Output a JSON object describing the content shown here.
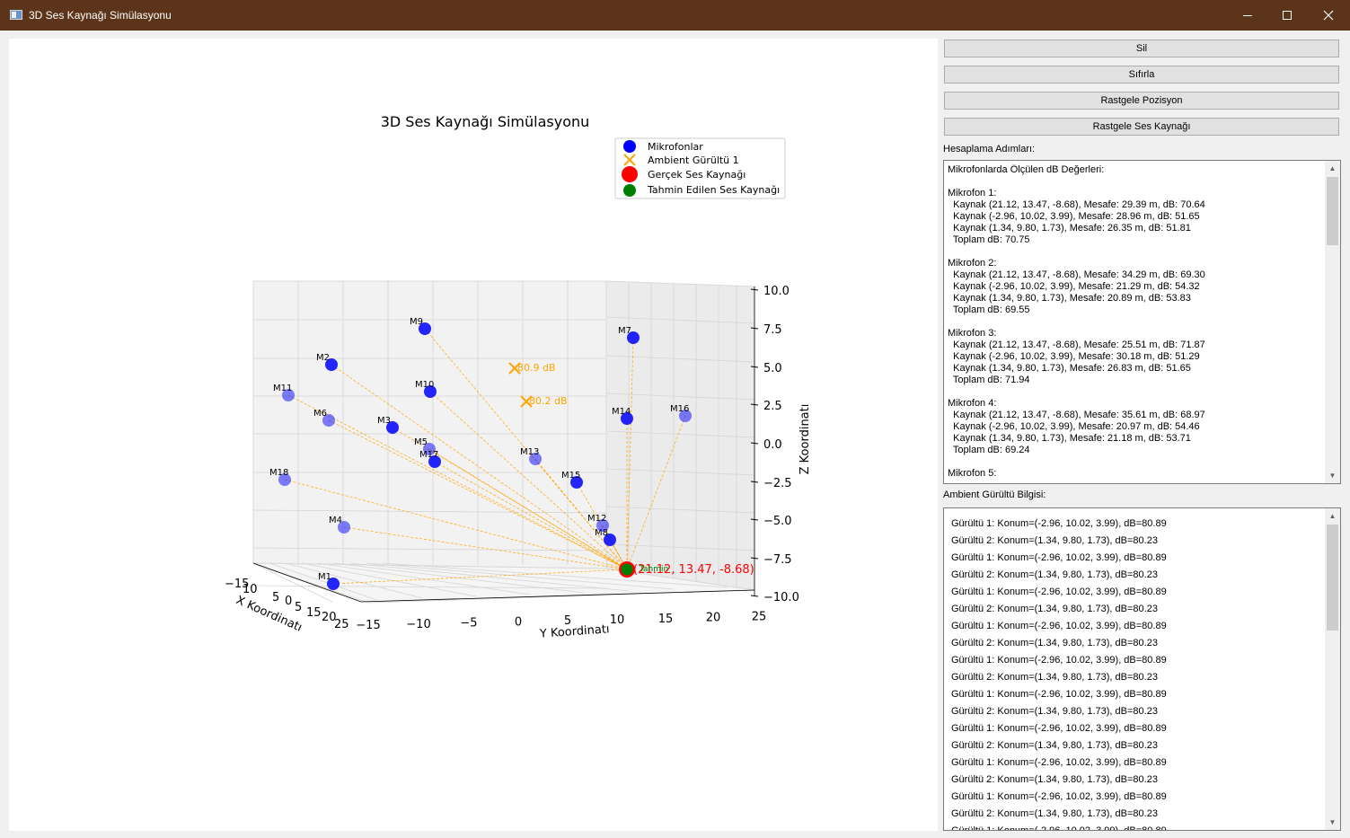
{
  "window": {
    "title": "3D Ses Kaynağı Simülasyonu",
    "icon": "app-window-icon",
    "controls": [
      "minimize-icon",
      "maximize-icon",
      "close-icon"
    ]
  },
  "sidebar": {
    "buttons": [
      "Sil",
      "Sıfırla",
      "Rastgele Pozisyon",
      "Rastgele Ses Kaynağı"
    ],
    "steps_label": "Hesaplama Adımları:",
    "steps_lines": [
      "Mikrofonlarda Ölçülen dB Değerleri:",
      "",
      "Mikrofon 1:",
      "  Kaynak (21.12, 13.47, -8.68), Mesafe: 29.39 m, dB: 70.64",
      "  Kaynak (-2.96, 10.02, 3.99), Mesafe: 28.96 m, dB: 51.65",
      "  Kaynak (1.34, 9.80, 1.73), Mesafe: 26.35 m, dB: 51.81",
      "  Toplam dB: 70.75",
      "",
      "Mikrofon 2:",
      "  Kaynak (21.12, 13.47, -8.68), Mesafe: 34.29 m, dB: 69.30",
      "  Kaynak (-2.96, 10.02, 3.99), Mesafe: 21.29 m, dB: 54.32",
      "  Kaynak (1.34, 9.80, 1.73), Mesafe: 20.89 m, dB: 53.83",
      "  Toplam dB: 69.55",
      "",
      "Mikrofon 3:",
      "  Kaynak (21.12, 13.47, -8.68), Mesafe: 25.51 m, dB: 71.87",
      "  Kaynak (-2.96, 10.02, 3.99), Mesafe: 30.18 m, dB: 51.29",
      "  Kaynak (1.34, 9.80, 1.73), Mesafe: 26.83 m, dB: 51.65",
      "  Toplam dB: 71.94",
      "",
      "Mikrofon 4:",
      "  Kaynak (21.12, 13.47, -8.68), Mesafe: 35.61 m, dB: 68.97",
      "  Kaynak (-2.96, 10.02, 3.99), Mesafe: 20.97 m, dB: 54.46",
      "  Kaynak (1.34, 9.80, 1.73), Mesafe: 21.18 m, dB: 53.71",
      "  Toplam dB: 69.24",
      "",
      "Mikrofon 5:"
    ],
    "ambient_label": "Ambient Gürültü Bilgisi:",
    "ambient_lines": [
      "Gürültü 1: Konum=(-2.96, 10.02, 3.99), dB=80.89",
      "Gürültü 2: Konum=(1.34, 9.80, 1.73), dB=80.23",
      "Gürültü 1: Konum=(-2.96, 10.02, 3.99), dB=80.89",
      "Gürültü 2: Konum=(1.34, 9.80, 1.73), dB=80.23",
      "Gürültü 1: Konum=(-2.96, 10.02, 3.99), dB=80.89",
      "Gürültü 2: Konum=(1.34, 9.80, 1.73), dB=80.23",
      "Gürültü 1: Konum=(-2.96, 10.02, 3.99), dB=80.89",
      "Gürültü 2: Konum=(1.34, 9.80, 1.73), dB=80.23",
      "Gürültü 1: Konum=(-2.96, 10.02, 3.99), dB=80.89",
      "Gürültü 2: Konum=(1.34, 9.80, 1.73), dB=80.23",
      "Gürültü 1: Konum=(-2.96, 10.02, 3.99), dB=80.89",
      "Gürültü 2: Konum=(1.34, 9.80, 1.73), dB=80.23",
      "Gürültü 1: Konum=(-2.96, 10.02, 3.99), dB=80.89",
      "Gürültü 2: Konum=(1.34, 9.80, 1.73), dB=80.23",
      "Gürültü 1: Konum=(-2.96, 10.02, 3.99), dB=80.89",
      "Gürültü 2: Konum=(1.34, 9.80, 1.73), dB=80.23",
      "Gürültü 1: Konum=(-2.96, 10.02, 3.99), dB=80.89",
      "Gürültü 2: Konum=(1.34, 9.80, 1.73), dB=80.23",
      "Gürültü 1: Konum=(-2.96, 10.02, 3.99), dB=80.89"
    ]
  },
  "colors": {
    "microphone": "#0000ff",
    "ambient": "#ffa500",
    "true_source": "#ff0000",
    "estimated_source": "#008000",
    "title_bar": "#5c341a"
  },
  "chart_data": {
    "type": "scatter",
    "projection": "3d",
    "title": "3D Ses Kaynağı Simülasyonu",
    "xlabel": "X Koordinatı",
    "ylabel": "Y Koordinatı",
    "zlabel": "Z Koordinatı",
    "xlim": [
      -15,
      25
    ],
    "ylim": [
      -15,
      25
    ],
    "zlim": [
      -10,
      10
    ],
    "xticks": [
      "−15",
      "10",
      "5",
      "0",
      "5",
      "10",
      "15",
      "20",
      "25"
    ],
    "yticks": [
      "−15",
      "−10",
      "−5",
      "0",
      "5",
      "10",
      "15",
      "20",
      "25"
    ],
    "zticks": [
      "10.0",
      "7.5",
      "5.0",
      "2.5",
      "0.0",
      "−2.5",
      "−5.0",
      "−7.5",
      "−10.0"
    ],
    "grid": true,
    "legend_position": "top-right",
    "legend": [
      "Mikrofonlar",
      "Ambient Gürültü 1",
      "Gerçek Ses Kaynağı",
      "Tahmin Edilen Ses Kaynağı"
    ],
    "microphones": [
      "M1",
      "M2",
      "M3",
      "M4",
      "M5",
      "M6",
      "M7",
      "M8",
      "M9",
      "M10",
      "M11",
      "M12",
      "M13",
      "M14",
      "M15",
      "M16",
      "M17",
      "M18"
    ],
    "true_source": {
      "x": 21.12,
      "y": 13.47,
      "z": -8.68,
      "label": "(21.12, 13.47, -8.68)"
    },
    "ambient_sources": [
      {
        "x": -2.96,
        "y": 10.02,
        "z": 3.99,
        "label": "80.9 dB"
      },
      {
        "x": 1.34,
        "y": 9.8,
        "z": 1.73,
        "label": "80.2 dB"
      }
    ],
    "estimated_label": "Tahmin"
  }
}
